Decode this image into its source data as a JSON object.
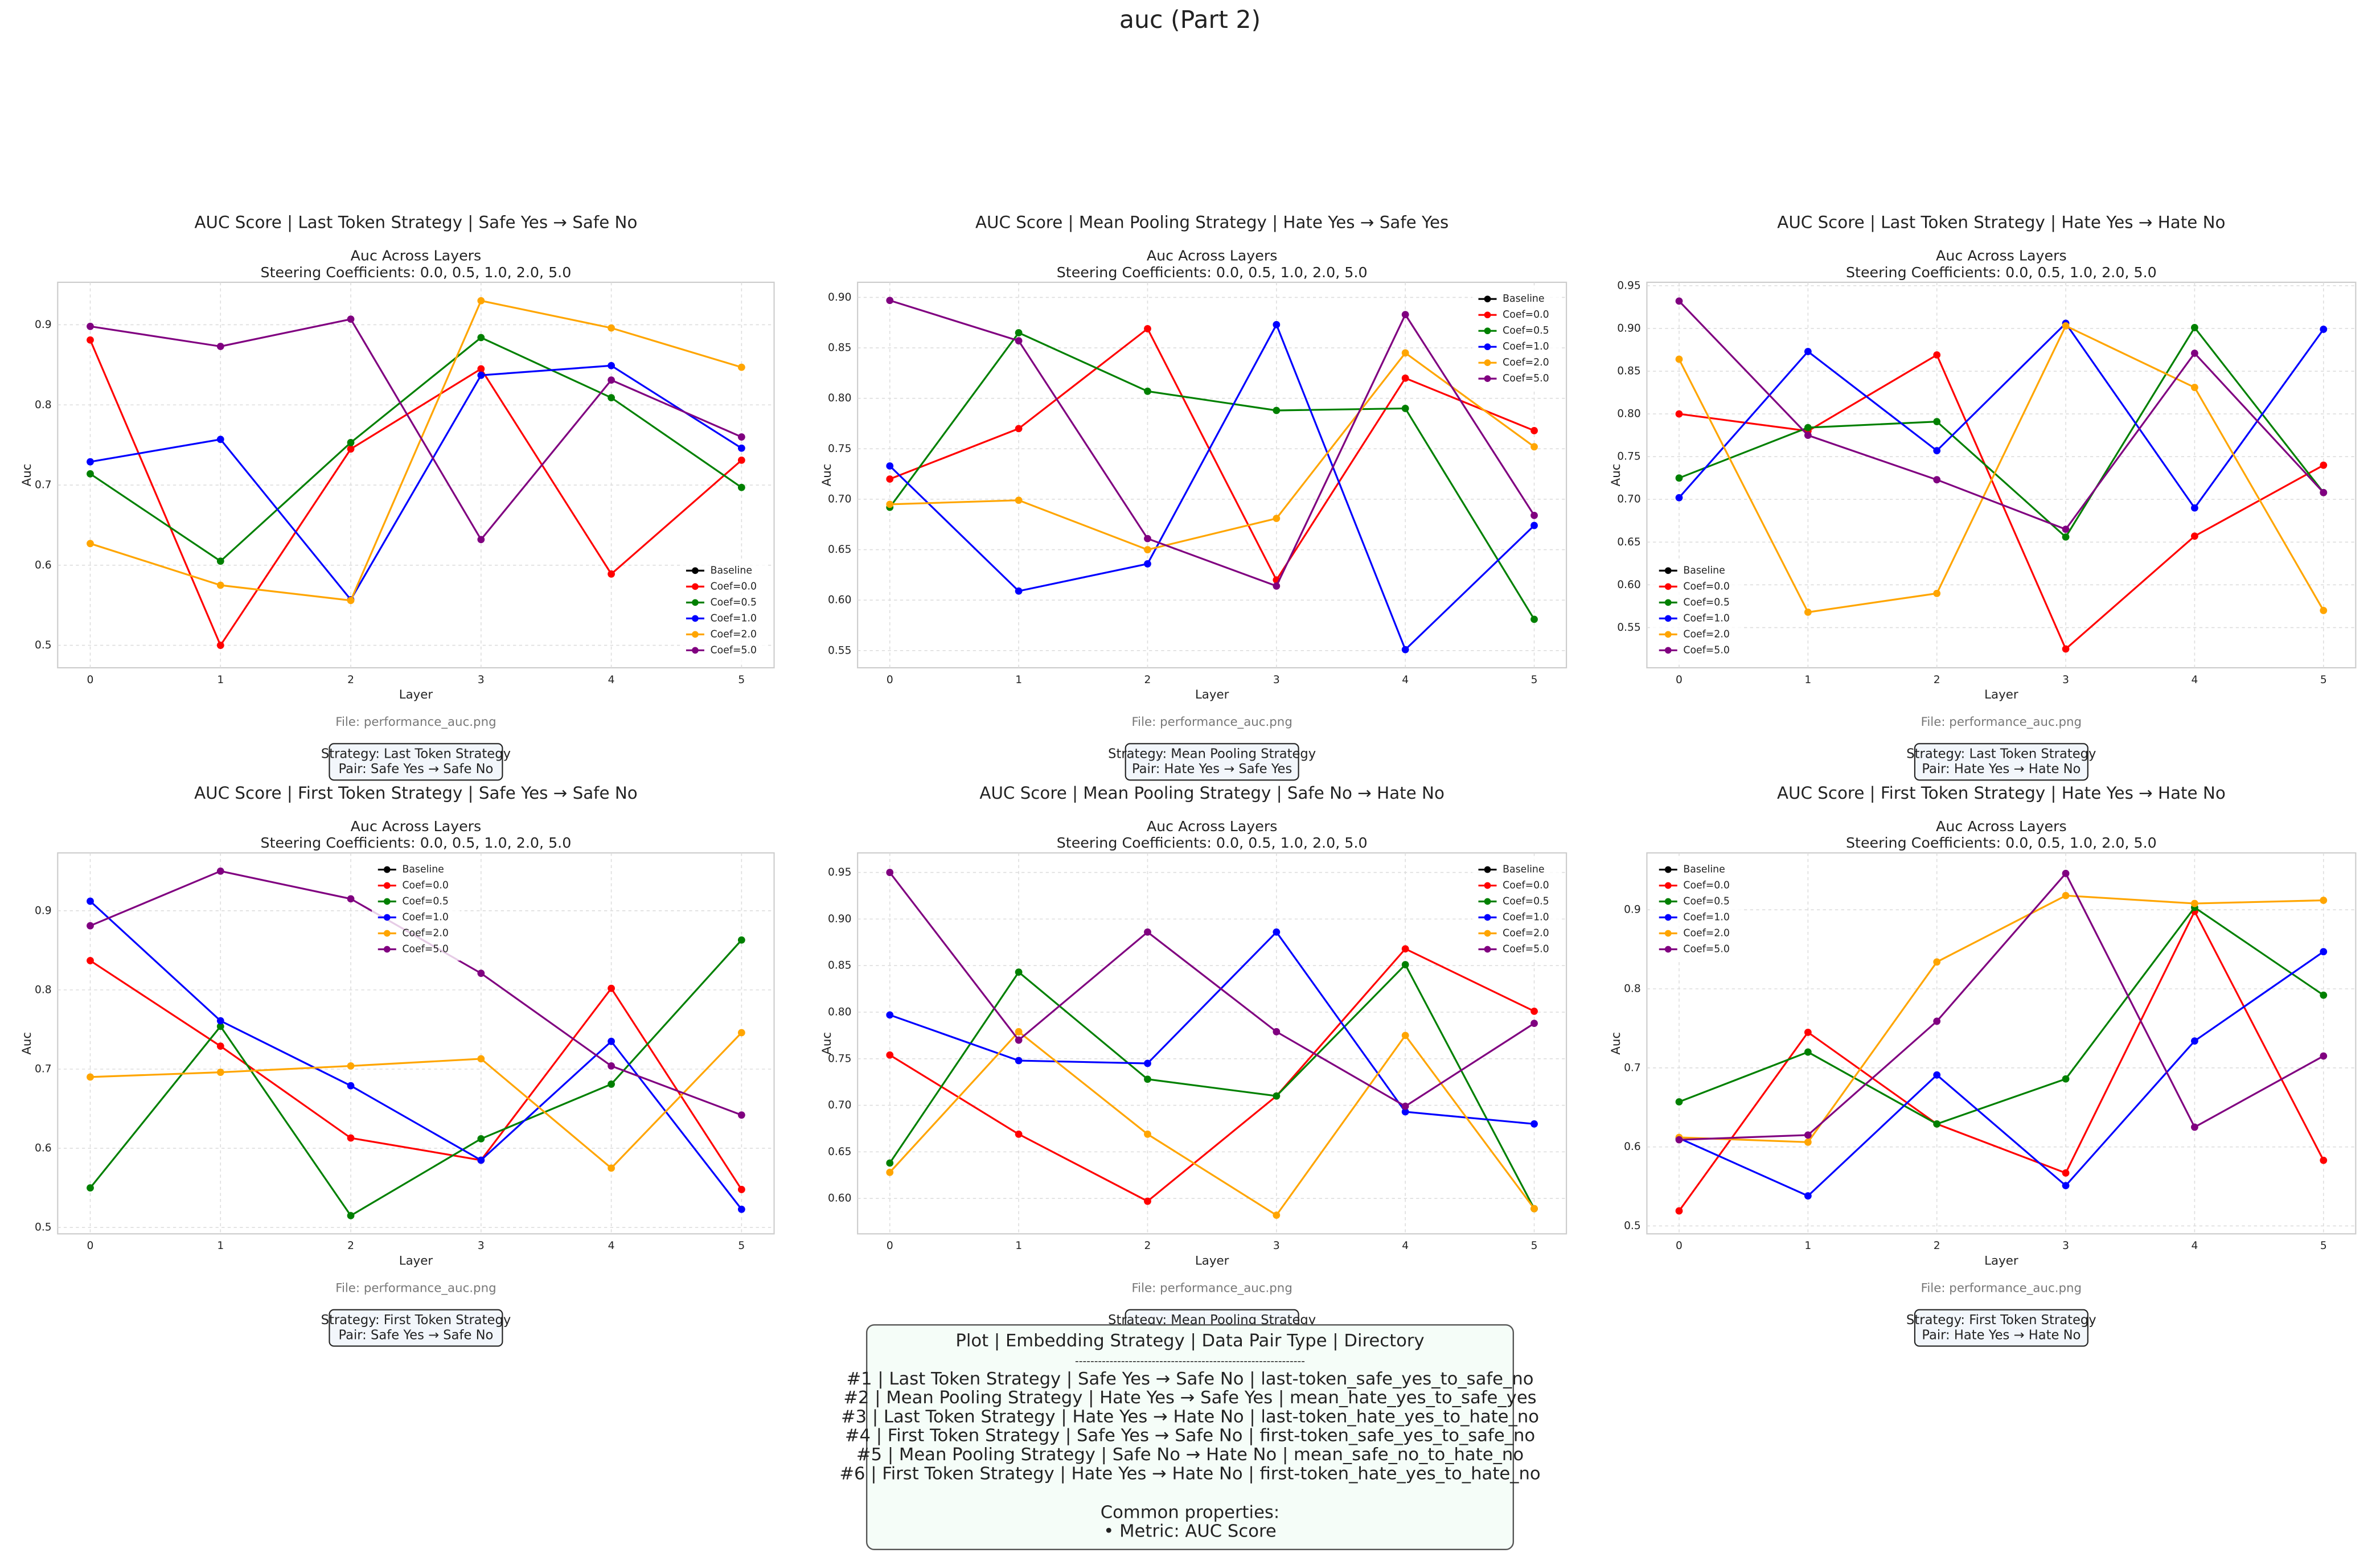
{
  "title": "auc (Part 2)",
  "info_box": {
    "title": "Plot | Embedding Strategy | Data Pair Type | Directory",
    "separator": "------------------------------------------------------------",
    "lines": [
      "#1 | Last Token Strategy | Safe Yes → Safe No | last-token_safe_yes_to_safe_no",
      "#2 | Mean Pooling Strategy | Hate Yes → Safe Yes | mean_hate_yes_to_safe_yes",
      "#3 | Last Token Strategy | Hate Yes → Hate No | last-token_hate_yes_to_hate_no",
      "#4 | First Token Strategy | Safe Yes → Safe No | first-token_safe_yes_to_safe_no",
      "#5 | Mean Pooling Strategy | Safe No → Hate No | mean_safe_no_to_hate_no",
      "#6 | First Token Strategy | Hate Yes → Hate No | first-token_hate_yes_to_hate_no"
    ],
    "common_title": "Common properties:",
    "common_lines": [
      "• Metric: AUC Score"
    ]
  },
  "chart_data": [
    {
      "type": "line",
      "title": "AUC Score | Last Token Strategy | Safe Yes → Safe No",
      "subtitle": [
        "Auc Across Layers",
        "Steering Coefficients: 0.0, 0.5, 1.0, 2.0, 5.0"
      ],
      "x_label": "Layer",
      "y_label": "Auc",
      "caption": "File: performance_auc.png",
      "note": [
        "Strategy: Last Token Strategy",
        "Pair: Safe Yes → Safe No"
      ],
      "x": [
        0,
        1,
        2,
        3,
        4,
        5
      ],
      "xlim": [
        -0.25,
        5.25
      ],
      "xticks": [
        0,
        1,
        2,
        3,
        4,
        5
      ],
      "ylim": [
        0.472,
        0.953
      ],
      "yticks": [
        0.5,
        0.6,
        0.7,
        0.8,
        0.9
      ],
      "grid": true,
      "legend": "lower right",
      "series": [
        {
          "name": "Baseline",
          "color": "#000000",
          "values": [
            null,
            null,
            null,
            null,
            null,
            null
          ]
        },
        {
          "name": "Coef=0.0",
          "color": "#ff0000",
          "values": [
            0.881,
            0.5,
            0.745,
            0.845,
            0.589,
            0.731
          ]
        },
        {
          "name": "Coef=0.5",
          "color": "#008000",
          "values": [
            0.714,
            0.605,
            0.753,
            0.884,
            0.809,
            0.697
          ]
        },
        {
          "name": "Coef=1.0",
          "color": "#0000ff",
          "values": [
            0.729,
            0.757,
            0.557,
            0.837,
            0.849,
            0.746
          ]
        },
        {
          "name": "Coef=2.0",
          "color": "#ffa500",
          "values": [
            0.627,
            0.575,
            0.556,
            0.93,
            0.896,
            0.847
          ]
        },
        {
          "name": "Coef=5.0",
          "color": "#800080",
          "values": [
            0.898,
            0.873,
            0.907,
            0.632,
            0.831,
            0.76
          ]
        }
      ]
    },
    {
      "type": "line",
      "title": "AUC Score | Mean Pooling Strategy | Hate Yes → Safe Yes",
      "subtitle": [
        "Auc Across Layers",
        "Steering Coefficients: 0.0, 0.5, 1.0, 2.0, 5.0"
      ],
      "x_label": "Layer",
      "y_label": "Auc",
      "caption": "File: performance_auc.png",
      "note": [
        "Strategy: Mean Pooling Strategy",
        "Pair: Hate Yes → Safe Yes"
      ],
      "x": [
        0,
        1,
        2,
        3,
        4,
        5
      ],
      "xlim": [
        -0.25,
        5.25
      ],
      "xticks": [
        0,
        1,
        2,
        3,
        4,
        5
      ],
      "ylim": [
        0.533,
        0.915
      ],
      "yticks": [
        0.55,
        {
          "value": 0.6,
          "label": "0.60"
        },
        0.65,
        {
          "value": 0.7,
          "label": "0.70"
        },
        0.75,
        {
          "value": 0.8,
          "label": "0.80"
        },
        0.85,
        {
          "value": 0.9,
          "label": "0.90"
        }
      ],
      "grid": true,
      "legend": "upper right",
      "series": [
        {
          "name": "Baseline",
          "color": "#000000",
          "values": [
            null,
            null,
            null,
            null,
            null,
            null
          ]
        },
        {
          "name": "Coef=0.0",
          "color": "#ff0000",
          "values": [
            0.72,
            0.77,
            0.869,
            0.62,
            0.82,
            0.768
          ]
        },
        {
          "name": "Coef=0.5",
          "color": "#008000",
          "values": [
            0.692,
            0.865,
            0.807,
            0.788,
            0.79,
            0.581
          ]
        },
        {
          "name": "Coef=1.0",
          "color": "#0000ff",
          "values": [
            0.733,
            0.609,
            0.636,
            0.873,
            0.551,
            0.674
          ]
        },
        {
          "name": "Coef=2.0",
          "color": "#ffa500",
          "values": [
            0.695,
            0.699,
            0.65,
            0.681,
            0.845,
            0.752
          ]
        },
        {
          "name": "Coef=5.0",
          "color": "#800080",
          "values": [
            0.897,
            0.857,
            0.661,
            0.614,
            0.883,
            0.684
          ]
        }
      ]
    },
    {
      "type": "line",
      "title": "AUC Score | Last Token Strategy | Hate Yes → Hate No",
      "subtitle": [
        "Auc Across Layers",
        "Steering Coefficients: 0.0, 0.5, 1.0, 2.0, 5.0"
      ],
      "x_label": "Layer",
      "y_label": "Auc",
      "caption": "File: performance_auc.png",
      "note": [
        "Strategy: Last Token Strategy",
        "Pair: Hate Yes → Hate No"
      ],
      "x": [
        0,
        1,
        2,
        3,
        4,
        5
      ],
      "xlim": [
        -0.25,
        5.25
      ],
      "xticks": [
        0,
        1,
        2,
        3,
        4,
        5
      ],
      "ylim": [
        0.503,
        0.954
      ],
      "yticks": [
        0.55,
        {
          "value": 0.6,
          "label": "0.60"
        },
        0.65,
        {
          "value": 0.7,
          "label": "0.70"
        },
        0.75,
        {
          "value": 0.8,
          "label": "0.80"
        },
        0.85,
        {
          "value": 0.9,
          "label": "0.90"
        },
        0.95
      ],
      "grid": true,
      "legend": "lower left",
      "series": [
        {
          "name": "Baseline",
          "color": "#000000",
          "values": [
            null,
            null,
            null,
            null,
            null,
            null
          ]
        },
        {
          "name": "Coef=0.0",
          "color": "#ff0000",
          "values": [
            0.8,
            0.78,
            0.869,
            0.525,
            0.657,
            0.74
          ]
        },
        {
          "name": "Coef=0.5",
          "color": "#008000",
          "values": [
            0.725,
            0.784,
            0.791,
            0.656,
            0.901,
            0.708
          ]
        },
        {
          "name": "Coef=1.0",
          "color": "#0000ff",
          "values": [
            0.702,
            0.873,
            0.757,
            0.906,
            0.69,
            0.899
          ]
        },
        {
          "name": "Coef=2.0",
          "color": "#ffa500",
          "values": [
            0.864,
            0.568,
            0.59,
            0.903,
            0.831,
            0.57
          ]
        },
        {
          "name": "Coef=5.0",
          "color": "#800080",
          "values": [
            0.932,
            0.775,
            0.723,
            0.665,
            0.871,
            0.708
          ]
        }
      ]
    },
    {
      "type": "line",
      "title": "AUC Score | First Token Strategy | Safe Yes → Safe No",
      "subtitle": [
        "Auc Across Layers",
        "Steering Coefficients: 0.0, 0.5, 1.0, 2.0, 5.0"
      ],
      "x_label": "Layer",
      "y_label": "Auc",
      "caption": "File: performance_auc.png",
      "note": [
        "Strategy: First Token Strategy",
        "Pair: Safe Yes → Safe No"
      ],
      "x": [
        0,
        1,
        2,
        3,
        4,
        5
      ],
      "xlim": [
        -0.25,
        5.25
      ],
      "xticks": [
        0,
        1,
        2,
        3,
        4,
        5
      ],
      "ylim": [
        0.492,
        0.973
      ],
      "yticks": [
        0.5,
        0.6,
        0.7,
        0.8,
        0.9
      ],
      "grid": true,
      "legend": "upper center",
      "series": [
        {
          "name": "Baseline",
          "color": "#000000",
          "values": [
            null,
            null,
            null,
            null,
            null,
            null
          ]
        },
        {
          "name": "Coef=0.0",
          "color": "#ff0000",
          "values": [
            0.837,
            0.729,
            0.613,
            0.585,
            0.802,
            0.548
          ]
        },
        {
          "name": "Coef=0.5",
          "color": "#008000",
          "values": [
            0.55,
            0.754,
            0.515,
            0.612,
            0.681,
            0.863
          ]
        },
        {
          "name": "Coef=1.0",
          "color": "#0000ff",
          "values": [
            0.912,
            0.761,
            0.679,
            0.585,
            0.735,
            0.523
          ]
        },
        {
          "name": "Coef=2.0",
          "color": "#ffa500",
          "values": [
            0.69,
            0.696,
            0.704,
            0.713,
            0.575,
            0.746
          ]
        },
        {
          "name": "Coef=5.0",
          "color": "#800080",
          "values": [
            0.881,
            0.95,
            0.915,
            0.821,
            0.704,
            0.642
          ]
        }
      ]
    },
    {
      "type": "line",
      "title": "AUC Score | Mean Pooling Strategy | Safe No → Hate No",
      "subtitle": [
        "Auc Across Layers",
        "Steering Coefficients: 0.0, 0.5, 1.0, 2.0, 5.0"
      ],
      "x_label": "Layer",
      "y_label": "Auc",
      "caption": "File: performance_auc.png",
      "note": [
        "Strategy: Mean Pooling Strategy"
      ],
      "x": [
        0,
        1,
        2,
        3,
        4,
        5
      ],
      "xlim": [
        -0.25,
        5.25
      ],
      "xticks": [
        0,
        1,
        2,
        3,
        4,
        5
      ],
      "ylim": [
        0.562,
        0.971
      ],
      "yticks": [
        {
          "value": 0.6,
          "label": "0.60"
        },
        0.65,
        {
          "value": 0.7,
          "label": "0.70"
        },
        0.75,
        {
          "value": 0.8,
          "label": "0.80"
        },
        0.85,
        {
          "value": 0.9,
          "label": "0.90"
        },
        0.95
      ],
      "grid": true,
      "legend": "upper right",
      "series": [
        {
          "name": "Baseline",
          "color": "#000000",
          "values": [
            null,
            null,
            null,
            null,
            null,
            null
          ]
        },
        {
          "name": "Coef=0.0",
          "color": "#ff0000",
          "values": [
            0.754,
            0.669,
            0.597,
            0.71,
            0.868,
            0.801
          ]
        },
        {
          "name": "Coef=0.5",
          "color": "#008000",
          "values": [
            0.638,
            0.843,
            0.728,
            0.71,
            0.851,
            0.589
          ]
        },
        {
          "name": "Coef=1.0",
          "color": "#0000ff",
          "values": [
            0.797,
            0.748,
            0.745,
            0.886,
            0.693,
            0.68
          ]
        },
        {
          "name": "Coef=2.0",
          "color": "#ffa500",
          "values": [
            0.628,
            0.779,
            0.669,
            0.582,
            0.775,
            0.589
          ]
        },
        {
          "name": "Coef=5.0",
          "color": "#800080",
          "values": [
            0.95,
            0.77,
            0.886,
            0.779,
            0.699,
            0.788
          ]
        }
      ]
    },
    {
      "type": "line",
      "title": "AUC Score | First Token Strategy | Hate Yes → Hate No",
      "subtitle": [
        "Auc Across Layers",
        "Steering Coefficients: 0.0, 0.5, 1.0, 2.0, 5.0"
      ],
      "x_label": "Layer",
      "y_label": "Auc",
      "caption": "File: performance_auc.png",
      "note": [
        "Strategy: First Token Strategy",
        "Pair: Hate Yes → Hate No"
      ],
      "x": [
        0,
        1,
        2,
        3,
        4,
        5
      ],
      "xlim": [
        -0.25,
        5.25
      ],
      "xticks": [
        0,
        1,
        2,
        3,
        4,
        5
      ],
      "ylim": [
        0.49,
        0.972
      ],
      "yticks": [
        0.5,
        0.6,
        0.7,
        0.8,
        0.9
      ],
      "grid": true,
      "legend": "upper left",
      "series": [
        {
          "name": "Baseline",
          "color": "#000000",
          "values": [
            null,
            null,
            null,
            null,
            null,
            null
          ]
        },
        {
          "name": "Coef=0.0",
          "color": "#ff0000",
          "values": [
            0.519,
            0.745,
            0.629,
            0.567,
            0.898,
            0.583
          ]
        },
        {
          "name": "Coef=0.5",
          "color": "#008000",
          "values": [
            0.657,
            0.72,
            0.629,
            0.686,
            0.903,
            0.792
          ]
        },
        {
          "name": "Coef=1.0",
          "color": "#0000ff",
          "values": [
            0.611,
            0.538,
            0.691,
            0.551,
            0.734,
            0.847
          ]
        },
        {
          "name": "Coef=2.0",
          "color": "#ffa500",
          "values": [
            0.612,
            0.606,
            0.834,
            0.918,
            0.908,
            0.912
          ]
        },
        {
          "name": "Coef=5.0",
          "color": "#800080",
          "values": [
            0.609,
            0.615,
            0.759,
            0.946,
            0.625,
            0.715
          ]
        }
      ]
    }
  ]
}
